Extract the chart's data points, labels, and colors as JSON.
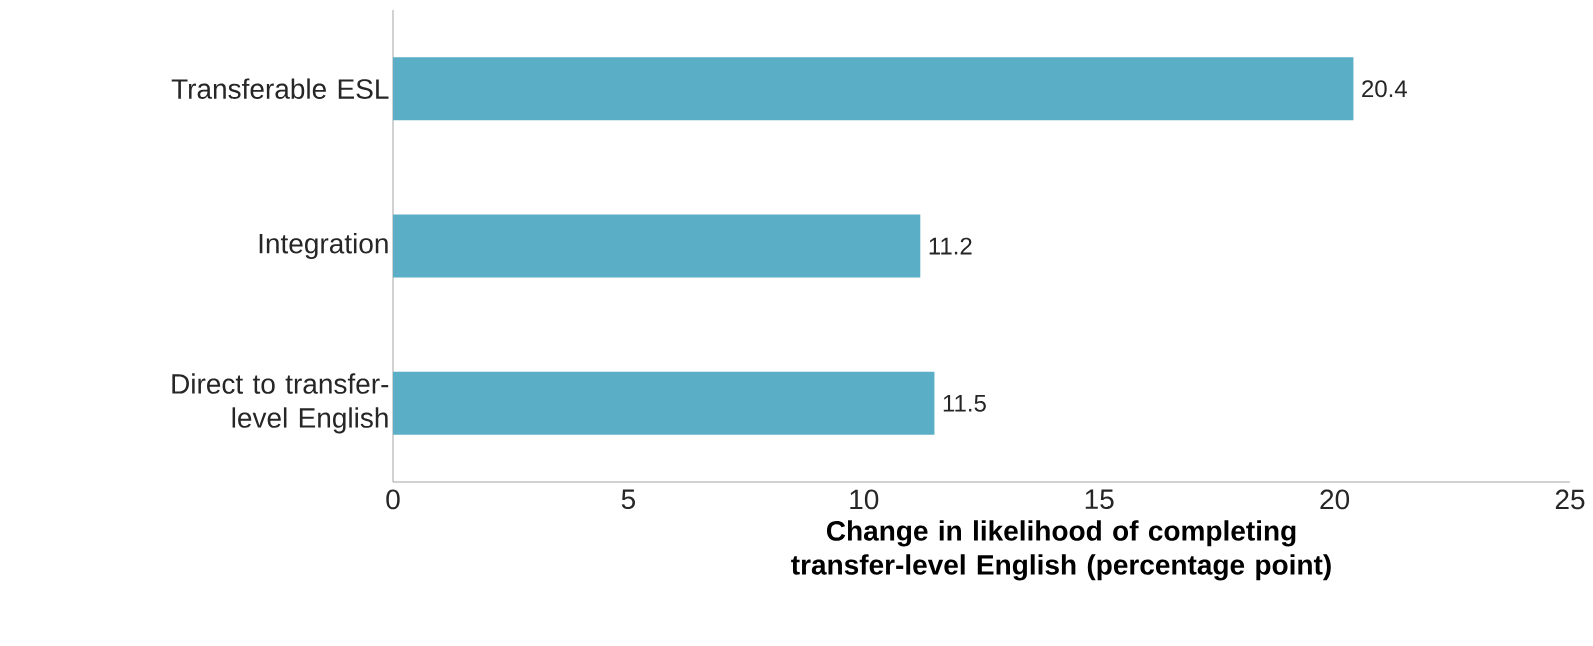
{
  "chart_data": {
    "type": "bar",
    "orientation": "horizontal",
    "categories": [
      "Transferable ESL",
      "Integration",
      "Direct to transfer-level English"
    ],
    "values": [
      20.4,
      11.2,
      11.5
    ],
    "color": "#5aaec6",
    "xlim": [
      0,
      25
    ],
    "xticks": [
      0,
      5,
      10,
      15,
      20,
      25
    ],
    "xlabel": "Change in likelihood of completing transfer-level English (percentage point)",
    "data_labels": true
  }
}
